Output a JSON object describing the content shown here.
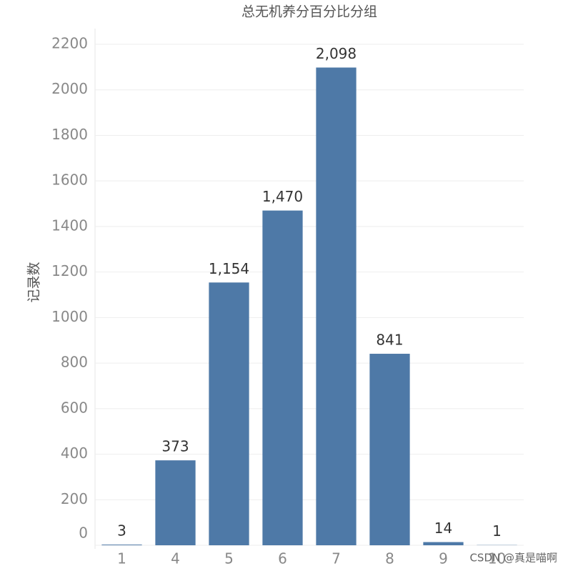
{
  "chart_data": {
    "type": "bar",
    "title": "总无机养分百分比分组",
    "y_label": "记录数",
    "categories": [
      "1",
      "4",
      "5",
      "6",
      "7",
      "8",
      "9",
      "10"
    ],
    "values": [
      3,
      373,
      1154,
      1470,
      2098,
      841,
      14,
      1
    ],
    "value_labels": [
      "3",
      "373",
      "1,154",
      "1,470",
      "2,098",
      "841",
      "14",
      "1"
    ],
    "color": "#4e79a7",
    "ylim": [
      0,
      2200
    ],
    "yticks": [
      0,
      200,
      400,
      600,
      800,
      1000,
      1200,
      1400,
      1600,
      1800,
      2000,
      2200
    ],
    "grid": true,
    "watermark": "CSDN @真是喵啊"
  }
}
